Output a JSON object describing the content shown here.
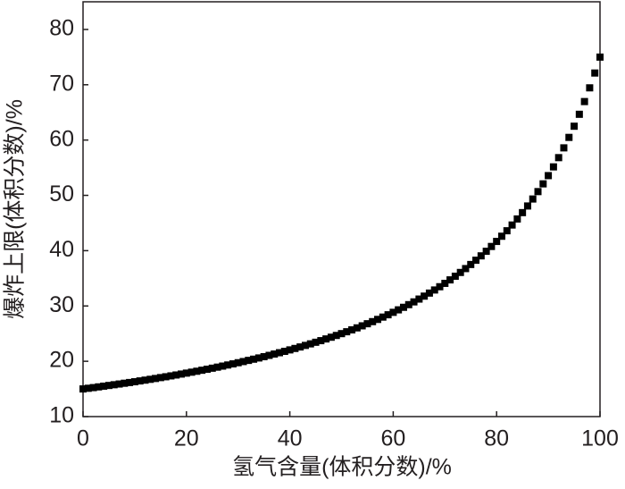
{
  "chart_data": {
    "type": "scatter",
    "x_label": "氢气含量(体积分数)/%",
    "y_label": "爆炸上限(体积分数)/%",
    "xlim": [
      0,
      100
    ],
    "xticks": [
      0,
      20,
      40,
      60,
      80,
      100
    ],
    "ylim": [
      10,
      85
    ],
    "yticks": [
      10,
      20,
      30,
      40,
      50,
      60,
      70,
      80
    ],
    "series": [
      {
        "color": "#000000",
        "x": [
          0,
          1,
          2,
          3,
          4,
          5,
          6,
          7,
          8,
          9,
          10,
          11,
          12,
          13,
          14,
          15,
          16,
          17,
          18,
          19,
          20,
          21,
          22,
          23,
          24,
          25,
          26,
          27,
          28,
          29,
          30,
          31,
          32,
          33,
          34,
          35,
          36,
          37,
          38,
          39,
          40,
          41,
          42,
          43,
          44,
          45,
          46,
          47,
          48,
          49,
          50,
          51,
          52,
          53,
          54,
          55,
          56,
          57,
          58,
          59,
          60,
          61,
          62,
          63,
          64,
          65,
          66,
          67,
          68,
          69,
          70,
          71,
          72,
          73,
          74,
          75,
          76,
          77,
          78,
          79,
          80,
          81,
          82,
          83,
          84,
          85,
          86,
          87,
          88,
          89,
          90,
          91,
          92,
          93,
          94,
          95,
          96,
          97,
          98,
          99,
          100
        ],
        "values": [
          15.0,
          15.12,
          15.24,
          15.37,
          15.5,
          15.63,
          15.76,
          15.89,
          16.03,
          16.16,
          16.3,
          16.45,
          16.59,
          16.74,
          16.89,
          17.05,
          17.2,
          17.36,
          17.52,
          17.69,
          17.86,
          18.03,
          18.2,
          18.38,
          18.56,
          18.75,
          18.94,
          19.13,
          19.33,
          19.53,
          19.74,
          19.95,
          20.16,
          20.38,
          20.6,
          20.83,
          21.07,
          21.31,
          21.55,
          21.8,
          22.06,
          22.32,
          22.59,
          22.87,
          23.15,
          23.44,
          23.73,
          24.04,
          24.35,
          24.67,
          25.0,
          25.34,
          25.68,
          26.04,
          26.41,
          26.79,
          27.17,
          27.57,
          27.99,
          28.41,
          28.85,
          29.3,
          29.76,
          30.24,
          30.74,
          31.25,
          31.78,
          32.33,
          32.89,
          33.48,
          34.09,
          34.72,
          35.38,
          36.06,
          36.76,
          37.5,
          38.27,
          39.06,
          39.89,
          40.76,
          41.67,
          42.61,
          43.6,
          44.64,
          45.73,
          46.88,
          48.08,
          49.34,
          50.68,
          52.08,
          53.57,
          55.15,
          56.82,
          58.59,
          60.48,
          62.5,
          64.66,
          66.96,
          69.44,
          72.12,
          75.0
        ]
      }
    ]
  }
}
